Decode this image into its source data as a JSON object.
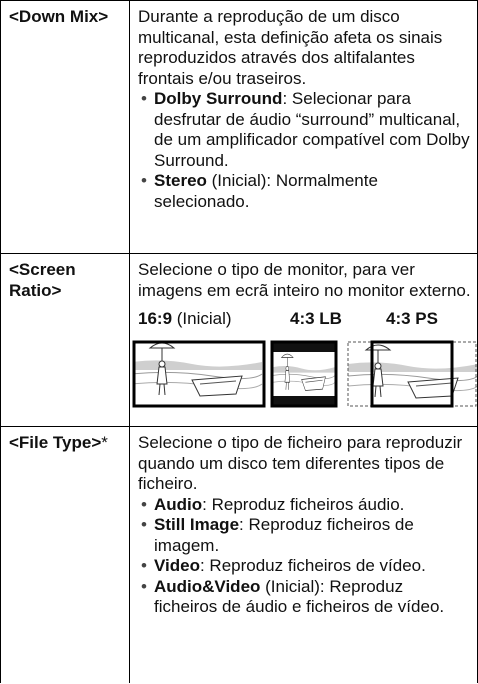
{
  "rows": [
    {
      "label": "<Down Mix>",
      "paragraph": "Durante a reprodução de um disco multicanal, esta definição afeta os sinais reproduzidos através dos altifalantes frontais e/ou traseiros.",
      "items": [
        {
          "term": "Dolby Surround",
          "text": ": Selecionar para desfrutar de áudio “surround” multicanal, de um amplificador compatível com Dolby Surround."
        },
        {
          "term": "Stereo",
          "text": " (Inicial): Normalmente selecionado."
        }
      ]
    },
    {
      "label": "<Screen Ratio>",
      "paragraph": "Selecione o tipo de monitor, para ver imagens em ecrã inteiro no monitor externo.",
      "options": [
        {
          "term": "16:9",
          "text": " (Inicial)"
        },
        {
          "term": "4:3 LB"
        },
        {
          "term": "4:3 PS"
        }
      ]
    },
    {
      "label": "<File Type>",
      "label_suffix": "*",
      "paragraph": "Selecione o tipo de ficheiro para reproduzir quando um disco tem diferentes tipos de ficheiro.",
      "items": [
        {
          "term": "Audio",
          "text": ": Reproduz ficheiros áudio."
        },
        {
          "term": "Still Image",
          "text": ": Reproduz ficheiros de imagem."
        },
        {
          "term": "Video",
          "text": ": Reproduz ficheiros de vídeo."
        },
        {
          "term": "Audio&Video",
          "text": " (Inicial): Reproduz ficheiros de áudio e ficheiros de vídeo."
        }
      ]
    }
  ]
}
